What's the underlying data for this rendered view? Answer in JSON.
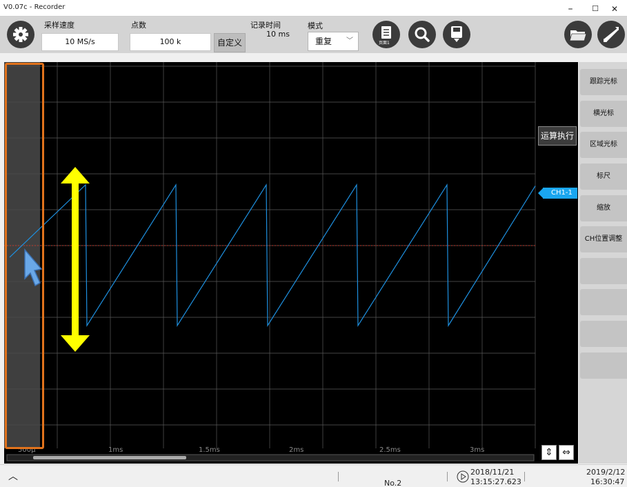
{
  "window": {
    "title": "V0.07c - Recorder",
    "minimize": "–",
    "maximize": "☐",
    "close": "✕"
  },
  "toolbar": {
    "sample_rate_label": "采样速度",
    "sample_rate_value": "10 MS/s",
    "points_label": "点数",
    "points_value": "100 k",
    "custom_label": "自定义",
    "record_time_label": "记录时间",
    "record_time_value": "10 ms",
    "mode_label": "模式",
    "mode_value": "重复",
    "page_label": "页面1",
    "colors": {
      "button_dark": "#3b3b3b",
      "toolbar_bg": "#d4d4d4"
    }
  },
  "graph": {
    "time_labels": [
      "500µ",
      "1ms",
      "1.5ms",
      "2ms",
      "2.5ms",
      "3ms"
    ],
    "calc_label": "运算执行",
    "channel_label": "CH1-1",
    "colors": {
      "background": "#000000",
      "grid": "#5a5a5a",
      "waveform": "#1e90e0",
      "trigger_line": "#c0392b",
      "arrow": "#ffff00",
      "highlight": "#e2731c"
    }
  },
  "chart_data": {
    "type": "line",
    "xlabel": "",
    "ylabel": "",
    "x_tick_labels": [
      "500µ",
      "1ms",
      "1.5ms",
      "2ms",
      "2.5ms",
      "3ms"
    ],
    "series": [
      {
        "name": "CH1-1",
        "shape": "sawtooth",
        "period_ms": 0.5
      }
    ],
    "grid": true
  },
  "side_panel": {
    "buttons": [
      "跟踪光标",
      "横光标",
      "区域光标",
      "标尺",
      "缩放",
      "CH位置调整",
      "",
      "",
      "",
      ""
    ]
  },
  "status": {
    "number": "No.2",
    "start_date": "2018/11/21",
    "start_time": "13:15:27.623",
    "current_date": "2019/2/12",
    "current_time": "16:30:47"
  }
}
